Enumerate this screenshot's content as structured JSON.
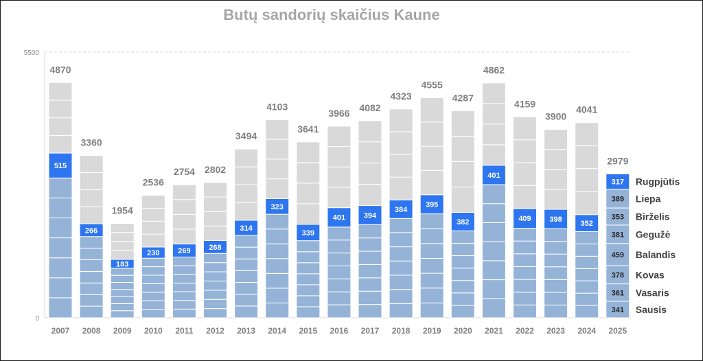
{
  "chart_data": {
    "type": "bar",
    "stacked": true,
    "title": "Butų sandorių skaičius Kaune",
    "ylim": [
      0,
      5500
    ],
    "y_ticks": [
      0,
      5500
    ],
    "grid": "dashed line at top of y range",
    "legend": "none",
    "colors": {
      "past_months": "#95b3d7",
      "highlight_month": "#2e75f0",
      "later_months": "#d9d9d9",
      "segment_divider": "#ffffff"
    },
    "categories": [
      "2007",
      "2008",
      "2009",
      "2010",
      "2011",
      "2012",
      "2013",
      "2014",
      "2015",
      "2016",
      "2017",
      "2018",
      "2019",
      "2020",
      "2021",
      "2022",
      "2023",
      "2024",
      "2025"
    ],
    "totals": [
      4870,
      3360,
      1954,
      2536,
      2754,
      2802,
      3494,
      4103,
      3641,
      3966,
      4082,
      4323,
      4555,
      4287,
      4862,
      4159,
      3900,
      4041,
      2979
    ],
    "jan_aug_totals": [
      3410,
      1947,
      1208,
      1464,
      1527,
      1600,
      2020,
      2467,
      1935,
      2279,
      2323,
      2441,
      2547,
      2182,
      3158,
      2263,
      2245,
      2136,
      2979
    ],
    "august_values": [
      515,
      266,
      183,
      230,
      269,
      268,
      314,
      323,
      339,
      401,
      394,
      384,
      395,
      382,
      401,
      409,
      398,
      352,
      317
    ],
    "current_year": {
      "year": "2025",
      "months": [
        "Sausis",
        "Vasaris",
        "Kovas",
        "Balandis",
        "Gegužė",
        "Birželis",
        "Liepa",
        "Rugpjūtis"
      ],
      "values": [
        341,
        361,
        378,
        459,
        381,
        353,
        389,
        317
      ]
    }
  }
}
